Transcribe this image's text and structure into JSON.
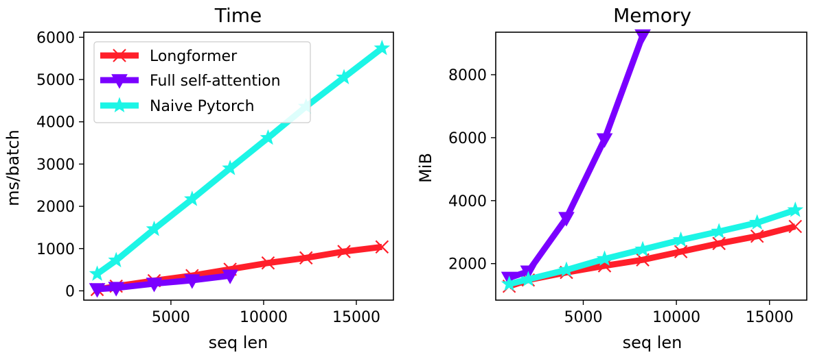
{
  "colors": {
    "longformer": "#ff1f2a",
    "full_self_attention": "#7a00ff",
    "naive_pytorch": "#1cf5e6"
  },
  "chart_data": [
    {
      "type": "line",
      "title": "Time",
      "xlabel": "seq len",
      "ylabel": "ms/batch",
      "xlim": [
        300,
        17000
      ],
      "ylim": [
        -220,
        6120
      ],
      "xticks": [
        5000,
        10000,
        15000
      ],
      "yticks": [
        0,
        1000,
        2000,
        3000,
        4000,
        5000,
        6000
      ],
      "legend": {
        "placement": "top-left"
      },
      "series": [
        {
          "name": "Longformer",
          "key": "longformer",
          "marker": "x",
          "x": [
            1024,
            2048,
            4096,
            6144,
            8192,
            10240,
            12288,
            14336,
            16384
          ],
          "y": [
            30,
            110,
            240,
            360,
            510,
            660,
            780,
            930,
            1040
          ]
        },
        {
          "name": "Full self-attention",
          "key": "full_self_attention",
          "marker": "triangle-down",
          "x": [
            1024,
            2048,
            4096,
            6144,
            8192
          ],
          "y": [
            40,
            70,
            170,
            250,
            360
          ]
        },
        {
          "name": "Naive Pytorch",
          "key": "naive_pytorch",
          "marker": "star",
          "x": [
            1024,
            2048,
            4096,
            6144,
            8192,
            10240,
            12288,
            14336,
            16384
          ],
          "y": [
            400,
            720,
            1460,
            2170,
            2900,
            3620,
            4360,
            5050,
            5740
          ]
        }
      ]
    },
    {
      "type": "line",
      "title": "Memory",
      "xlabel": "seq len",
      "ylabel": "MiB",
      "xlim": [
        300,
        17000
      ],
      "ylim": [
        840,
        9350
      ],
      "xticks": [
        5000,
        10000,
        15000
      ],
      "yticks": [
        2000,
        4000,
        6000,
        8000
      ],
      "series": [
        {
          "name": "Longformer",
          "key": "longformer",
          "marker": "x",
          "x": [
            1024,
            2048,
            4096,
            6144,
            8192,
            10240,
            12288,
            14336,
            16384
          ],
          "y": [
            1280,
            1480,
            1720,
            1930,
            2120,
            2380,
            2640,
            2870,
            3180
          ]
        },
        {
          "name": "Full self-attention",
          "key": "full_self_attention",
          "marker": "triangle-down",
          "x": [
            1024,
            2048,
            4096,
            6144,
            8192
          ],
          "y": [
            1550,
            1750,
            3450,
            5950,
            9250
          ]
        },
        {
          "name": "Naive Pytorch",
          "key": "naive_pytorch",
          "marker": "star",
          "x": [
            1024,
            2048,
            4096,
            6144,
            8192,
            10240,
            12288,
            14336,
            16384
          ],
          "y": [
            1350,
            1500,
            1800,
            2150,
            2450,
            2750,
            3020,
            3300,
            3700
          ]
        }
      ]
    }
  ]
}
